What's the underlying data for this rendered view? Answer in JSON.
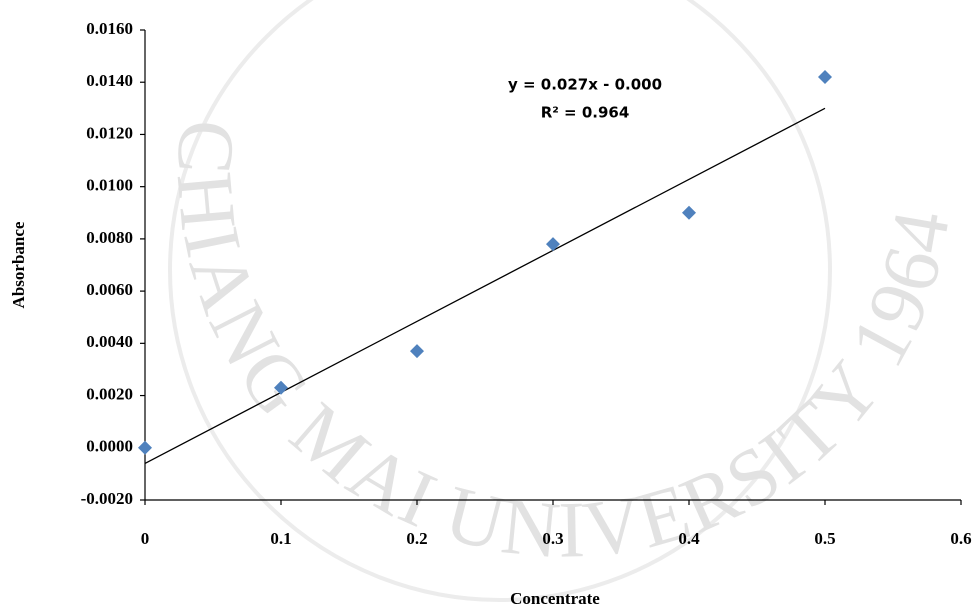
{
  "chart_data": {
    "type": "scatter",
    "x_label": "Concentrate",
    "y_label": "Absorbance",
    "x": [
      0,
      0.1,
      0.2,
      0.3,
      0.4,
      0.5
    ],
    "values": [
      0,
      0.0023,
      0.0037,
      0.0078,
      0.009,
      0.0142
    ],
    "color": "#4f81bd",
    "trendline": {
      "x": [
        0,
        0.5
      ],
      "values": [
        -0.0006,
        0.013
      ],
      "color": "#000000"
    },
    "annotations": [
      "y = 0.027x - 0.000",
      "R² = 0.964"
    ],
    "xlim": [
      0,
      0.6
    ],
    "xticks": [
      0,
      0.1,
      0.2,
      0.3,
      0.4,
      0.5,
      0.6
    ],
    "ylim": [
      -0.002,
      0.016
    ],
    "yticks": [
      {
        "value": -0.002,
        "label": "-0.0020"
      },
      {
        "value": 0,
        "label": "0.0000"
      },
      {
        "value": 0.002,
        "label": "0.0020"
      },
      {
        "value": 0.004,
        "label": "0.0040"
      },
      {
        "value": 0.006,
        "label": "0.0060"
      },
      {
        "value": 0.008,
        "label": "0.0080"
      },
      {
        "value": 0.01,
        "label": "0.0100"
      },
      {
        "value": 0.012,
        "label": "0.0120"
      },
      {
        "value": 0.014,
        "label": "0.0140"
      },
      {
        "value": 0.016,
        "label": "0.0160"
      }
    ],
    "watermark": "CHIANG MAI UNIVERSITY 1964",
    "grid": false
  }
}
